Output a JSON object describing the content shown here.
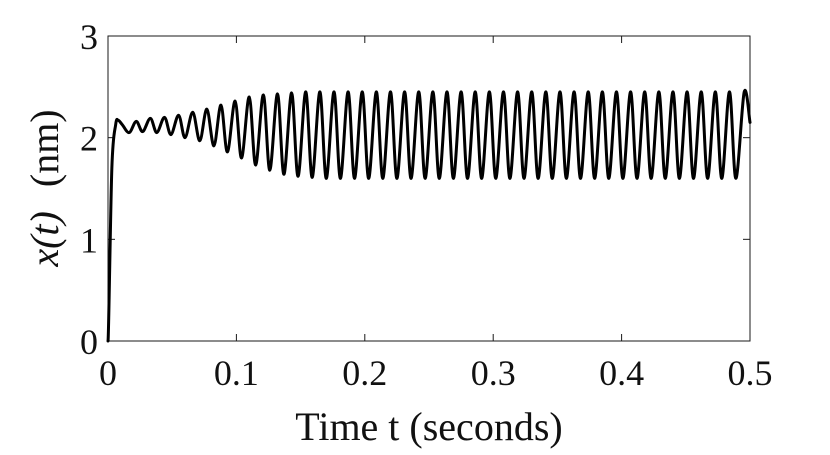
{
  "chart_data": {
    "type": "line",
    "title": "",
    "xlabel": "Time t (seconds)",
    "ylabel": "x(t)",
    "ylabel_unit": "(nm)",
    "xlim": [
      0,
      0.5
    ],
    "ylim": [
      0,
      3
    ],
    "xticks": [
      0,
      0.1,
      0.2,
      0.3,
      0.4,
      0.5
    ],
    "xtick_labels": [
      "0",
      "0.1",
      "0.2",
      "0.3",
      "0.4",
      "0.5"
    ],
    "yticks": [
      0,
      1,
      2,
      3
    ],
    "ytick_labels": [
      "0",
      "1",
      "2",
      "3"
    ],
    "grid": false,
    "line_color": "#000000",
    "series": [
      {
        "name": "",
        "x": [
          0,
          0.003,
          0.006,
          0.008,
          0.011,
          0.0165,
          0.022,
          0.027,
          0.033,
          0.038,
          0.044,
          0.049,
          0.055,
          0.06,
          0.066,
          0.0715,
          0.077,
          0.0825,
          0.088,
          0.093,
          0.099,
          0.104,
          0.11,
          0.115,
          0.121,
          0.126,
          0.132,
          0.137,
          0.143,
          0.148,
          0.154,
          0.159,
          0.165,
          0.17,
          0.176,
          0.181,
          0.187,
          0.192,
          0.198,
          0.203,
          0.209,
          0.214,
          0.22,
          0.225,
          0.231,
          0.236,
          0.242,
          0.247,
          0.253,
          0.258,
          0.264,
          0.269,
          0.275,
          0.28,
          0.286,
          0.291,
          0.297,
          0.302,
          0.308,
          0.313,
          0.319,
          0.324,
          0.33,
          0.335,
          0.341,
          0.346,
          0.352,
          0.357,
          0.363,
          0.368,
          0.374,
          0.379,
          0.385,
          0.39,
          0.396,
          0.401,
          0.407,
          0.412,
          0.418,
          0.423,
          0.429,
          0.434,
          0.44,
          0.445,
          0.451,
          0.456,
          0.462,
          0.467,
          0.473,
          0.478,
          0.484,
          0.489,
          0.4955,
          0.5
        ],
        "y": [
          0,
          1.7,
          2.13,
          2.17,
          2.13,
          2.05,
          2.16,
          2.06,
          2.19,
          2.05,
          2.2,
          2.03,
          2.22,
          2,
          2.25,
          1.97,
          2.28,
          1.92,
          2.32,
          1.86,
          2.36,
          1.8,
          2.4,
          1.73,
          2.42,
          1.68,
          2.43,
          1.64,
          2.44,
          1.62,
          2.45,
          1.61,
          2.45,
          1.6,
          2.45,
          1.6,
          2.45,
          1.6,
          2.45,
          1.6,
          2.45,
          1.6,
          2.45,
          1.6,
          2.45,
          1.6,
          2.45,
          1.6,
          2.45,
          1.6,
          2.45,
          1.6,
          2.45,
          1.6,
          2.45,
          1.6,
          2.45,
          1.6,
          2.45,
          1.6,
          2.45,
          1.6,
          2.45,
          1.6,
          2.45,
          1.6,
          2.45,
          1.6,
          2.45,
          1.6,
          2.45,
          1.6,
          2.45,
          1.6,
          2.45,
          1.6,
          2.45,
          1.6,
          2.45,
          1.6,
          2.45,
          1.6,
          2.45,
          1.6,
          2.45,
          1.6,
          2.45,
          1.6,
          2.45,
          1.6,
          2.45,
          1.6,
          2.45,
          2.15
        ]
      }
    ]
  }
}
